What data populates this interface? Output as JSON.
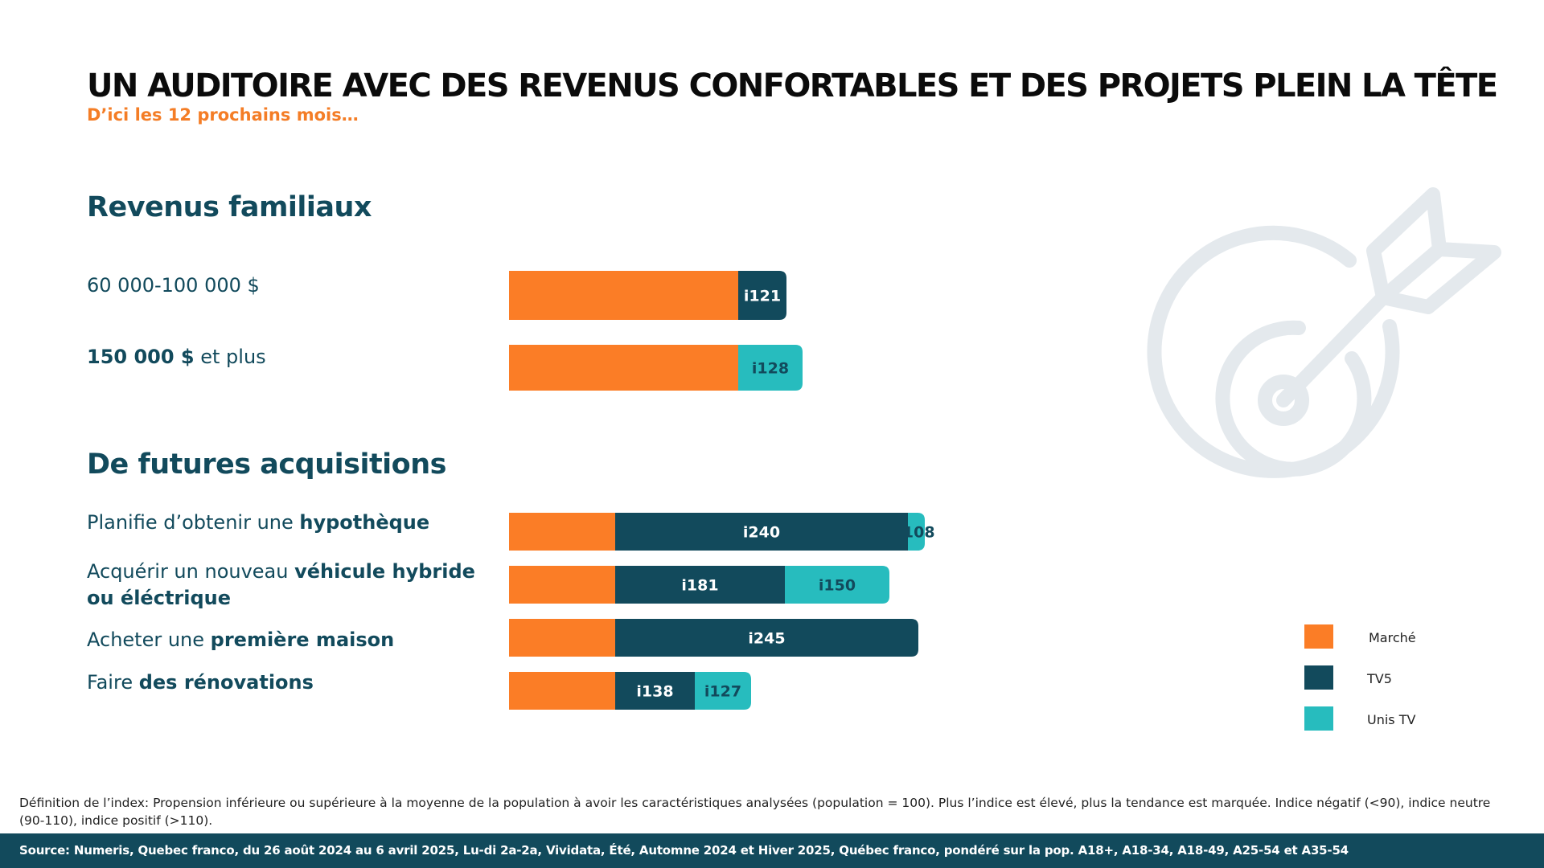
{
  "title": "UN AUDITOIRE AVEC DES REVENUS CONFORTABLES ET DES PROJETS PLEIN LA TÊTE",
  "subtitle": "D’ici les 12 prochains mois…",
  "sections": {
    "revenus": "Revenus familiaux",
    "acquisitions": "De futures acquisitions"
  },
  "rows": [
    {
      "pre": "60 000-100 000 $",
      "bold": "",
      "post": ""
    },
    {
      "pre": "",
      "bold": "150 000 $",
      "post": " et plus"
    },
    {
      "pre": "Planifie d’obtenir une ",
      "bold": "hypothèque",
      "post": ""
    },
    {
      "pre": "Acquérir un nouveau ",
      "bold": "véhicule hybride ou éléctrique",
      "post": ""
    },
    {
      "pre": "Acheter une ",
      "bold": "première maison",
      "post": ""
    },
    {
      "pre": "Faire ",
      "bold": "des rénovations",
      "post": ""
    }
  ],
  "legend": [
    {
      "label": "Marché",
      "color": "#fb7d26"
    },
    {
      "label": "TV5",
      "color": "#124a5c"
    },
    {
      "label": "Unis TV",
      "color": "#27bcbe"
    }
  ],
  "definition": "Définition de l’index: Propension inférieure ou supérieure à la moyenne de la population à avoir les caractéristiques analysées (population = 100). Plus l’indice est élevé, plus la tendance est marquée. Indice négatif (<90), indice neutre (90-110), indice positif (>110).",
  "footer": "Source: Numeris, Quebec franco, du 26 août 2024 au 6 avril 2025, Lu-di 2a-2a, Vividata, Été, Automne 2024 et Hiver 2025,  Québec franco, pondéré sur la pop. A18+, A18-34, A18-49, A25-54 et A35-54",
  "icons": {
    "watermark": "target-arrow-icon"
  },
  "chart_data": {
    "type": "bar",
    "orientation": "horizontal",
    "stacked": true,
    "groups": [
      {
        "name": "Revenus familiaux",
        "base": 100,
        "categories": [
          "60 000-100 000 $",
          "150 000 $ et plus"
        ],
        "series": [
          {
            "name": "TV5",
            "values": [
              121,
              null
            ]
          },
          {
            "name": "Unis TV",
            "values": [
              null,
              128
            ]
          }
        ]
      },
      {
        "name": "De futures acquisitions",
        "base": 100,
        "categories": [
          "Planifie d’obtenir une hypothèque",
          "Acquérir un nouveau véhicule hybride ou éléctrique",
          "Acheter une première maison",
          "Faire des rénovations"
        ],
        "series": [
          {
            "name": "TV5",
            "values": [
              240,
              181,
              245,
              138
            ]
          },
          {
            "name": "Unis TV",
            "values": [
              108,
              150,
              null,
              127
            ]
          }
        ]
      }
    ],
    "labels_prefix": "i",
    "colors": {
      "Marché": "#fb7d26",
      "TV5": "#124a5c",
      "Unis TV": "#27bcbe"
    }
  }
}
